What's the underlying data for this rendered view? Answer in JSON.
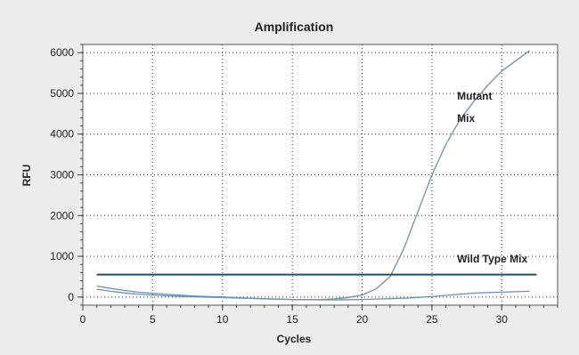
{
  "chart_data": {
    "type": "line",
    "title": "Amplification",
    "xlabel": "Cycles",
    "ylabel": "RFU",
    "xlim": [
      0,
      34
    ],
    "ylim": [
      -200,
      6200
    ],
    "xticks": [
      0,
      5,
      10,
      15,
      20,
      25,
      30
    ],
    "yticks": [
      0,
      1000,
      2000,
      3000,
      4000,
      5000,
      6000
    ],
    "xtick_labels": [
      "0",
      "5",
      "10",
      "15",
      "20",
      "25",
      "30"
    ],
    "ytick_labels": [
      "0",
      "1000",
      "2000",
      "3000",
      "4000",
      "5000",
      "6000"
    ],
    "grid": true,
    "series": [
      {
        "name": "Mutant Mix",
        "color": "#6f8faf",
        "x": [
          1,
          2,
          3,
          4,
          5,
          6,
          7,
          8,
          9,
          10,
          11,
          12,
          13,
          14,
          15,
          16,
          17,
          18,
          19,
          20,
          21,
          22,
          23,
          24,
          25,
          26,
          27,
          28,
          29,
          30,
          31,
          32
        ],
        "y": [
          270,
          210,
          160,
          120,
          90,
          65,
          45,
          25,
          10,
          0,
          -15,
          -30,
          -40,
          -50,
          -60,
          -65,
          -60,
          -45,
          -10,
          50,
          200,
          500,
          1200,
          2100,
          3000,
          3750,
          4350,
          4800,
          5200,
          5550,
          5800,
          6050
        ]
      },
      {
        "name": "Wild Type Mix",
        "color": "#6f8faf",
        "x": [
          1,
          2,
          3,
          4,
          5,
          6,
          7,
          8,
          9,
          10,
          11,
          12,
          13,
          14,
          15,
          16,
          17,
          18,
          19,
          20,
          21,
          22,
          23,
          24,
          25,
          26,
          27,
          28,
          29,
          30,
          31,
          32
        ],
        "y": [
          190,
          140,
          100,
          70,
          50,
          30,
          15,
          5,
          -5,
          -15,
          -25,
          -35,
          -45,
          -55,
          -60,
          -65,
          -70,
          -70,
          -65,
          -60,
          -50,
          -40,
          -30,
          -10,
          10,
          40,
          70,
          95,
          110,
          120,
          130,
          140
        ]
      }
    ],
    "threshold": {
      "y": 550,
      "x_start": 1,
      "x_end": 32.5,
      "color": "#1e4f63"
    },
    "annotations": [
      {
        "text": "Mutant",
        "x": 26.8,
        "y": 4850
      },
      {
        "text": "Mix",
        "x": 26.8,
        "y": 4300
      },
      {
        "text": "Wild Type Mix",
        "x": 26.8,
        "y": 850
      }
    ]
  }
}
